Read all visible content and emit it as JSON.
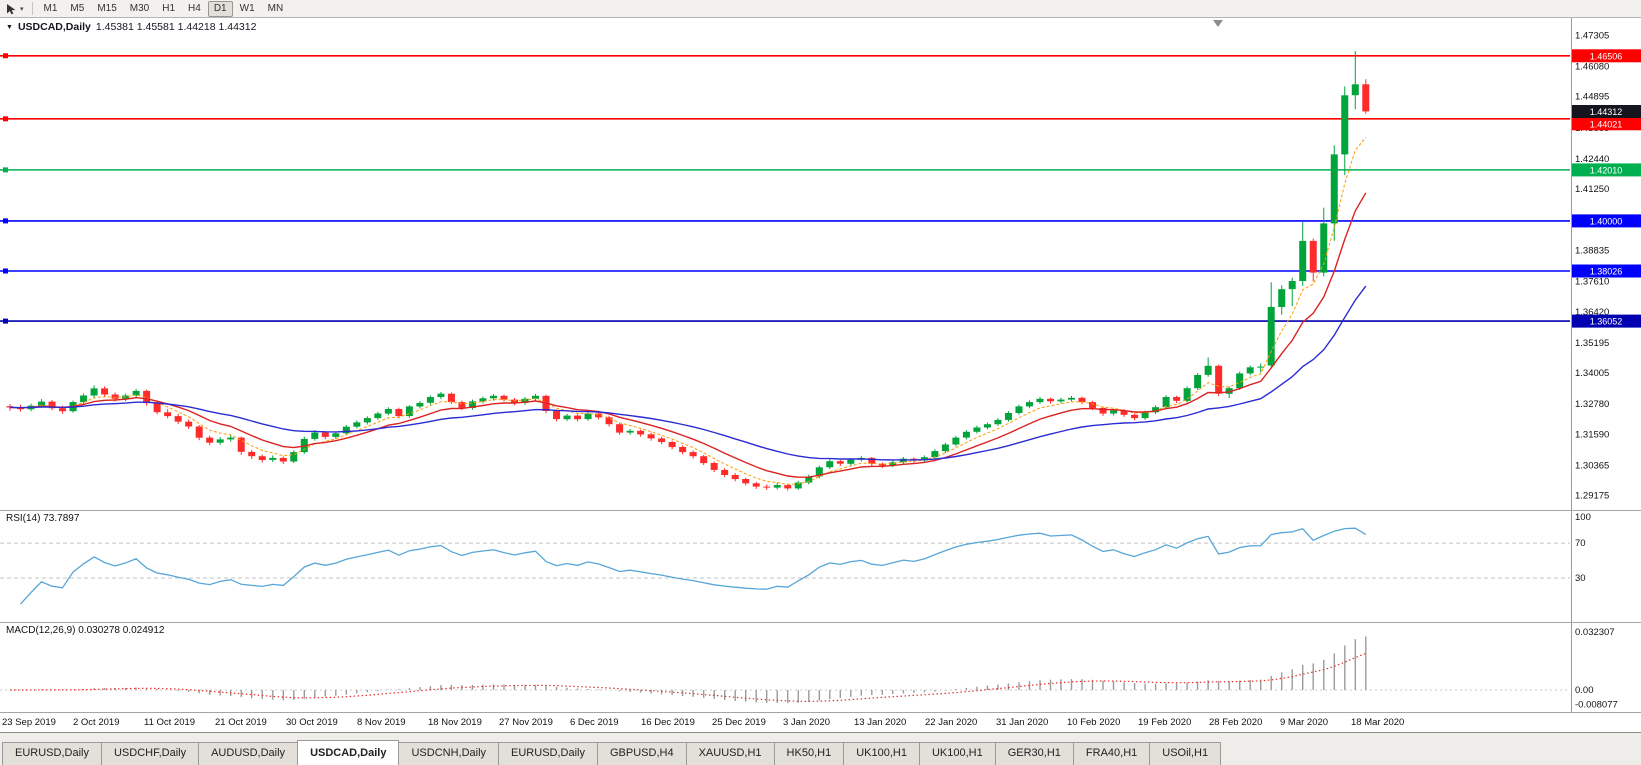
{
  "toolbar": {
    "timeframes": [
      {
        "label": "M1",
        "active": false
      },
      {
        "label": "M5",
        "active": false
      },
      {
        "label": "M15",
        "active": false
      },
      {
        "label": "M30",
        "active": false
      },
      {
        "label": "H1",
        "active": false
      },
      {
        "label": "H4",
        "active": false
      },
      {
        "label": "D1",
        "active": true
      },
      {
        "label": "W1",
        "active": false
      },
      {
        "label": "MN",
        "active": false
      }
    ]
  },
  "chart": {
    "title": "USDCAD,Daily",
    "ohlc_text": "1.45381 1.45581 1.44218 1.44312",
    "axis": {
      "top": 1.476,
      "ppp": 0.000394
    },
    "colors": {
      "up": "#00a43a",
      "down": "#ff2a2a"
    },
    "price_axis_labels": [
      "1.47305",
      "1.46080",
      "1.44895",
      "1.43665",
      "1.42440",
      "1.41250",
      "1.38835",
      "1.37610",
      "1.36420",
      "1.35195",
      "1.34005",
      "1.32780",
      "1.31590",
      "1.30365",
      "1.29175"
    ],
    "hlines": [
      {
        "price": 1.46506,
        "label": "1.46506",
        "color": "#ff0000",
        "label_offset_y": 0
      },
      {
        "price": 1.44021,
        "label": "1.44021",
        "color": "#ff0000",
        "label_offset_y": 5
      },
      {
        "price": 1.4201,
        "label": "1.42010",
        "color": "#00b050",
        "label_offset_y": 0
      },
      {
        "price": 1.4,
        "label": "1.40000",
        "color": "#0000ff",
        "label_offset_y": 0
      },
      {
        "price": 1.38026,
        "label": "1.38026",
        "color": "#0000ff",
        "label_offset_y": 0
      },
      {
        "price": 1.36052,
        "label": "1.36052",
        "color": "#0000b0",
        "label_offset_y": 0
      }
    ],
    "current_price": {
      "value": 1.44312,
      "label": "1.44312",
      "bg": "#15151f"
    },
    "ma": [
      {
        "period": 5,
        "color": "#ff9c00",
        "width": 1,
        "dash": "3 2"
      },
      {
        "period": 10,
        "color": "#dd2222",
        "width": 1.4,
        "dash": ""
      },
      {
        "period": 26,
        "color": "#2b2bd4",
        "width": 1.4,
        "dash": ""
      }
    ],
    "time_axis_labels": [
      "23 Sep 2019",
      "2 Oct 2019",
      "11 Oct 2019",
      "21 Oct 2019",
      "30 Oct 2019",
      "8 Nov 2019",
      "18 Nov 2019",
      "27 Nov 2019",
      "6 Dec 2019",
      "16 Dec 2019",
      "25 Dec 2019",
      "3 Jan 2020",
      "13 Jan 2020",
      "22 Jan 2020",
      "31 Jan 2020",
      "10 Feb 2020",
      "19 Feb 2020",
      "28 Feb 2020",
      "9 Mar 2020",
      "18 Mar 2020"
    ],
    "candles": [
      [
        1.327,
        1.3278,
        1.3252,
        1.3265
      ],
      [
        1.3265,
        1.3276,
        1.3248,
        1.3258
      ],
      [
        1.3258,
        1.328,
        1.325,
        1.3272
      ],
      [
        1.3272,
        1.3298,
        1.3264,
        1.3288
      ],
      [
        1.3288,
        1.3294,
        1.3254,
        1.3262
      ],
      [
        1.3262,
        1.3272,
        1.324,
        1.325
      ],
      [
        1.325,
        1.3292,
        1.3244,
        1.3286
      ],
      [
        1.3286,
        1.332,
        1.3278,
        1.3312
      ],
      [
        1.3312,
        1.3352,
        1.33,
        1.334
      ],
      [
        1.334,
        1.3348,
        1.3308,
        1.3316
      ],
      [
        1.3316,
        1.3324,
        1.3288,
        1.3299
      ],
      [
        1.3299,
        1.332,
        1.329,
        1.3312
      ],
      [
        1.3312,
        1.3338,
        1.3304,
        1.333
      ],
      [
        1.333,
        1.3336,
        1.3272,
        1.3282
      ],
      [
        1.3282,
        1.329,
        1.3238,
        1.3246
      ],
      [
        1.3246,
        1.3258,
        1.3222,
        1.3231
      ],
      [
        1.3231,
        1.324,
        1.32,
        1.3209
      ],
      [
        1.3209,
        1.3218,
        1.318,
        1.319
      ],
      [
        1.319,
        1.3196,
        1.3136,
        1.3146
      ],
      [
        1.3146,
        1.3154,
        1.3116,
        1.3126
      ],
      [
        1.3126,
        1.3148,
        1.3118,
        1.3139
      ],
      [
        1.3139,
        1.3158,
        1.313,
        1.3146
      ],
      [
        1.3146,
        1.315,
        1.3078,
        1.309
      ],
      [
        1.309,
        1.3098,
        1.3062,
        1.3073
      ],
      [
        1.3073,
        1.308,
        1.3048,
        1.3058
      ],
      [
        1.3058,
        1.3076,
        1.305,
        1.3066
      ],
      [
        1.3066,
        1.3072,
        1.3042,
        1.3052
      ],
      [
        1.3052,
        1.3096,
        1.3046,
        1.3089
      ],
      [
        1.3089,
        1.315,
        1.3082,
        1.3141
      ],
      [
        1.3141,
        1.3176,
        1.3134,
        1.3166
      ],
      [
        1.3166,
        1.3172,
        1.314,
        1.3149
      ],
      [
        1.3149,
        1.317,
        1.3141,
        1.3163
      ],
      [
        1.3163,
        1.3196,
        1.3156,
        1.3189
      ],
      [
        1.3189,
        1.3214,
        1.3182,
        1.3206
      ],
      [
        1.3206,
        1.323,
        1.3198,
        1.3223
      ],
      [
        1.3223,
        1.3248,
        1.3216,
        1.3241
      ],
      [
        1.3241,
        1.3266,
        1.3234,
        1.3259
      ],
      [
        1.3259,
        1.3264,
        1.3222,
        1.3231
      ],
      [
        1.3231,
        1.3274,
        1.3224,
        1.3269
      ],
      [
        1.3269,
        1.329,
        1.3261,
        1.3283
      ],
      [
        1.3283,
        1.3312,
        1.3276,
        1.3306
      ],
      [
        1.3306,
        1.3326,
        1.3298,
        1.3319
      ],
      [
        1.3319,
        1.3324,
        1.3278,
        1.3286
      ],
      [
        1.3286,
        1.3292,
        1.3254,
        1.3263
      ],
      [
        1.3263,
        1.3296,
        1.3256,
        1.3289
      ],
      [
        1.3289,
        1.3308,
        1.3281,
        1.3301
      ],
      [
        1.3301,
        1.3318,
        1.3292,
        1.3311
      ],
      [
        1.3311,
        1.3316,
        1.3288,
        1.3296
      ],
      [
        1.3296,
        1.3302,
        1.3274,
        1.3283
      ],
      [
        1.3283,
        1.3306,
        1.3276,
        1.3299
      ],
      [
        1.3299,
        1.3318,
        1.3292,
        1.3311
      ],
      [
        1.3311,
        1.3315,
        1.3242,
        1.3251
      ],
      [
        1.3251,
        1.3256,
        1.321,
        1.3219
      ],
      [
        1.3219,
        1.324,
        1.3212,
        1.3233
      ],
      [
        1.3233,
        1.3238,
        1.321,
        1.3219
      ],
      [
        1.3219,
        1.3248,
        1.3212,
        1.3241
      ],
      [
        1.3241,
        1.3246,
        1.3218,
        1.3226
      ],
      [
        1.3226,
        1.3232,
        1.319,
        1.3199
      ],
      [
        1.3199,
        1.3204,
        1.3158,
        1.3166
      ],
      [
        1.3166,
        1.318,
        1.3158,
        1.3173
      ],
      [
        1.3173,
        1.3178,
        1.315,
        1.3159
      ],
      [
        1.3159,
        1.3166,
        1.3134,
        1.3143
      ],
      [
        1.3143,
        1.315,
        1.312,
        1.3129
      ],
      [
        1.3129,
        1.3134,
        1.31,
        1.3109
      ],
      [
        1.3109,
        1.3116,
        1.308,
        1.3089
      ],
      [
        1.3089,
        1.3096,
        1.3064,
        1.3073
      ],
      [
        1.3073,
        1.3078,
        1.3038,
        1.3046
      ],
      [
        1.3046,
        1.3052,
        1.301,
        1.3019
      ],
      [
        1.3019,
        1.3026,
        1.299,
        1.2999
      ],
      [
        1.2999,
        1.3006,
        1.2974,
        1.2983
      ],
      [
        1.2983,
        1.2988,
        1.2958,
        1.2966
      ],
      [
        1.2966,
        1.2972,
        1.2944,
        1.2953
      ],
      [
        1.2953,
        1.2962,
        1.294,
        1.2949
      ],
      [
        1.2949,
        1.2968,
        1.2942,
        1.2959
      ],
      [
        1.2959,
        1.2964,
        1.2938,
        1.2946
      ],
      [
        1.2946,
        1.2976,
        1.294,
        1.2969
      ],
      [
        1.2969,
        1.3,
        1.2962,
        1.2993
      ],
      [
        1.2993,
        1.3036,
        1.2986,
        1.3029
      ],
      [
        1.3029,
        1.306,
        1.3022,
        1.3053
      ],
      [
        1.3053,
        1.3058,
        1.3034,
        1.3043
      ],
      [
        1.3043,
        1.3066,
        1.3036,
        1.3059
      ],
      [
        1.3059,
        1.3074,
        1.3052,
        1.3066
      ],
      [
        1.3066,
        1.307,
        1.3034,
        1.3043
      ],
      [
        1.3043,
        1.3048,
        1.3026,
        1.3036
      ],
      [
        1.3036,
        1.3056,
        1.303,
        1.3049
      ],
      [
        1.3049,
        1.307,
        1.3042,
        1.3063
      ],
      [
        1.3063,
        1.3068,
        1.3046,
        1.3056
      ],
      [
        1.3056,
        1.3076,
        1.3049,
        1.3069
      ],
      [
        1.3069,
        1.31,
        1.3062,
        1.3093
      ],
      [
        1.3093,
        1.3126,
        1.3086,
        1.3119
      ],
      [
        1.3119,
        1.3153,
        1.3112,
        1.3146
      ],
      [
        1.3146,
        1.3176,
        1.3139,
        1.3169
      ],
      [
        1.3169,
        1.3193,
        1.3162,
        1.3186
      ],
      [
        1.3186,
        1.3206,
        1.3179,
        1.3199
      ],
      [
        1.3199,
        1.3223,
        1.3192,
        1.3216
      ],
      [
        1.3216,
        1.325,
        1.3209,
        1.3243
      ],
      [
        1.3243,
        1.3276,
        1.3236,
        1.3269
      ],
      [
        1.3269,
        1.3293,
        1.3262,
        1.3286
      ],
      [
        1.3286,
        1.3306,
        1.3279,
        1.3299
      ],
      [
        1.3299,
        1.3304,
        1.328,
        1.3289
      ],
      [
        1.3289,
        1.3303,
        1.3282,
        1.3296
      ],
      [
        1.3296,
        1.331,
        1.3289,
        1.3303
      ],
      [
        1.3303,
        1.3308,
        1.3278,
        1.3286
      ],
      [
        1.3286,
        1.3291,
        1.3254,
        1.3263
      ],
      [
        1.3263,
        1.3268,
        1.3232,
        1.3241
      ],
      [
        1.3241,
        1.326,
        1.3234,
        1.3253
      ],
      [
        1.3253,
        1.3258,
        1.3228,
        1.3236
      ],
      [
        1.3236,
        1.3241,
        1.3214,
        1.3223
      ],
      [
        1.3223,
        1.3253,
        1.3216,
        1.3246
      ],
      [
        1.3246,
        1.3273,
        1.3239,
        1.3266
      ],
      [
        1.3266,
        1.3313,
        1.3259,
        1.3306
      ],
      [
        1.3306,
        1.3311,
        1.3282,
        1.3291
      ],
      [
        1.3291,
        1.3348,
        1.3284,
        1.3341
      ],
      [
        1.3341,
        1.34,
        1.3334,
        1.3393
      ],
      [
        1.3393,
        1.3462,
        1.3386,
        1.3429
      ],
      [
        1.3429,
        1.3434,
        1.331,
        1.3319
      ],
      [
        1.3319,
        1.3348,
        1.3302,
        1.3341
      ],
      [
        1.3341,
        1.3406,
        1.3334,
        1.3399
      ],
      [
        1.3399,
        1.343,
        1.3392,
        1.3423
      ],
      [
        1.3423,
        1.3438,
        1.3402,
        1.3426
      ],
      [
        1.343,
        1.3758,
        1.3418,
        1.3661
      ],
      [
        1.3661,
        1.3746,
        1.363,
        1.3731
      ],
      [
        1.3731,
        1.3776,
        1.3664,
        1.3763
      ],
      [
        1.3763,
        1.3996,
        1.3744,
        1.3921
      ],
      [
        1.3921,
        1.393,
        1.3762,
        1.3796
      ],
      [
        1.3796,
        1.4052,
        1.3781,
        1.399
      ],
      [
        1.399,
        1.4298,
        1.3922,
        1.4262
      ],
      [
        1.4262,
        1.453,
        1.418,
        1.4495
      ],
      [
        1.4495,
        1.4669,
        1.444,
        1.4538
      ],
      [
        1.45381,
        1.45581,
        1.44218,
        1.44312
      ]
    ]
  },
  "rsi": {
    "label": "RSI(14) 73.7897",
    "value": "73.7897",
    "levels": [
      "100",
      "70",
      "30"
    ],
    "color": "#58a6d8"
  },
  "macd": {
    "label": "MACD(12,26,9) 0.030278 0.024912",
    "main_value": "0.030278",
    "signal_value": "0.024912",
    "levels": [
      "0.032307",
      "0.00",
      "-0.008077"
    ],
    "histogram_color": "#9b9b9b",
    "signal_color": "#e23232"
  },
  "tabs": [
    {
      "label": "EURUSD,Daily",
      "active": false
    },
    {
      "label": "USDCHF,Daily",
      "active": false
    },
    {
      "label": "AUDUSD,Daily",
      "active": false
    },
    {
      "label": "USDCAD,Daily",
      "active": true
    },
    {
      "label": "USDCNH,Daily",
      "active": false
    },
    {
      "label": "EURUSD,Daily",
      "active": false
    },
    {
      "label": "GBPUSD,H4",
      "active": false
    },
    {
      "label": "XAUUSD,H1",
      "active": false
    },
    {
      "label": "HK50,H1",
      "active": false
    },
    {
      "label": "UK100,H1",
      "active": false
    },
    {
      "label": "UK100,H1",
      "active": false
    },
    {
      "label": "GER30,H1",
      "active": false
    },
    {
      "label": "FRA40,H1",
      "active": false
    },
    {
      "label": "USOil,H1",
      "active": false
    }
  ]
}
